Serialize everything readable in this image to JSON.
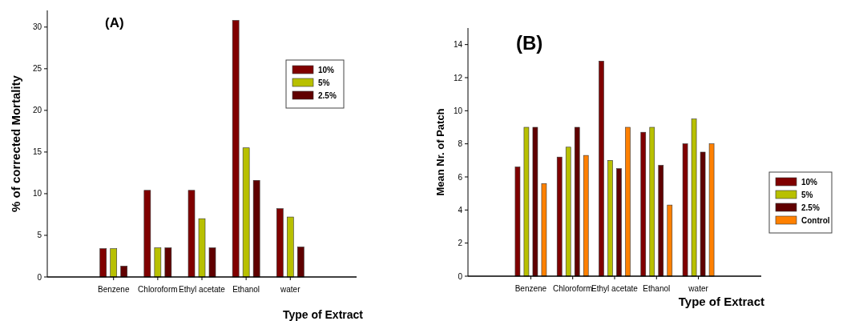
{
  "chart_data": [
    {
      "type": "bar",
      "title": "(A)",
      "xlabel": "Type of Extract",
      "ylabel": "% of corrected Mortality",
      "categories": [
        "Benzene",
        "Chloroform",
        "Ethyl acetate",
        "Ethanol",
        "water"
      ],
      "series": [
        {
          "name": "10%",
          "color": "#800000",
          "values": [
            3.4,
            10.4,
            10.4,
            30.8,
            8.2
          ]
        },
        {
          "name": "5%",
          "color": "#b8c000",
          "values": [
            3.4,
            3.5,
            7.0,
            15.5,
            7.2
          ]
        },
        {
          "name": "2.5%",
          "color": "#600000",
          "values": [
            1.3,
            3.5,
            3.5,
            11.6,
            3.6
          ]
        }
      ],
      "ylim": [
        0,
        32
      ],
      "yticks": [
        0,
        5,
        10,
        15,
        20,
        25,
        30
      ],
      "grid": false,
      "legend": "top right"
    },
    {
      "type": "bar",
      "title": "(B)",
      "xlabel": "Type of Extract",
      "ylabel": "Mean Nr. of Patch",
      "categories": [
        "Benzene",
        "Chloroform",
        "Ethyl acetate",
        "Ethanol",
        "water"
      ],
      "series": [
        {
          "name": "10%",
          "color": "#800000",
          "values": [
            6.6,
            7.2,
            13,
            8.7,
            8
          ]
        },
        {
          "name": "5%",
          "color": "#b8c000",
          "values": [
            9,
            7.8,
            7,
            9,
            9.5
          ]
        },
        {
          "name": "2.5%",
          "color": "#600000",
          "values": [
            9,
            9,
            6.5,
            6.7,
            7.5
          ]
        },
        {
          "name": "Control",
          "color": "#ff8000",
          "values": [
            5.6,
            7.3,
            9,
            4.3,
            8
          ]
        }
      ],
      "ylim": [
        0,
        15
      ],
      "yticks": [
        0,
        2,
        4,
        6,
        8,
        10,
        12,
        14
      ],
      "grid": false,
      "legend": "right"
    }
  ]
}
